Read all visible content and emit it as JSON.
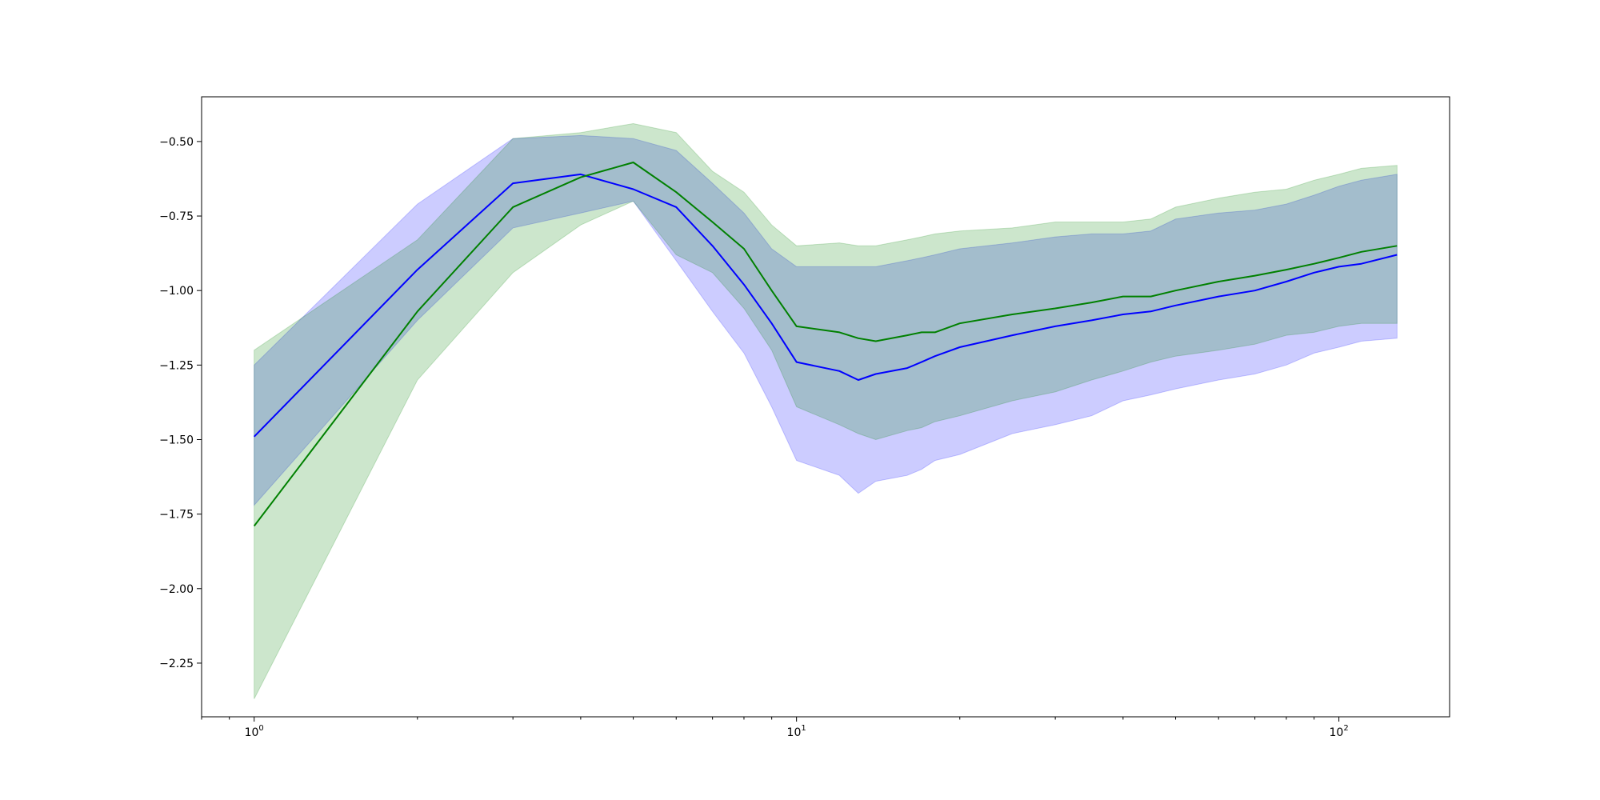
{
  "chart_data": {
    "type": "line",
    "title": "",
    "xlabel": "",
    "ylabel": "",
    "x_scale": "log",
    "xlim": [
      0.8,
      160
    ],
    "ylim": [
      -2.43,
      -0.35
    ],
    "grid": false,
    "legend": "none",
    "x_ticks": [
      {
        "value": 1,
        "base": "10",
        "exp": "0"
      },
      {
        "value": 10,
        "base": "10",
        "exp": "1"
      },
      {
        "value": 100,
        "base": "10",
        "exp": "2"
      }
    ],
    "y_ticks": [
      {
        "value": -0.5,
        "label": "−0.50"
      },
      {
        "value": -0.75,
        "label": "−0.75"
      },
      {
        "value": -1.0,
        "label": "−1.00"
      },
      {
        "value": -1.25,
        "label": "−1.25"
      },
      {
        "value": -1.5,
        "label": "−1.50"
      },
      {
        "value": -1.75,
        "label": "−1.75"
      },
      {
        "value": -2.0,
        "label": "−2.00"
      },
      {
        "value": -2.25,
        "label": "−2.25"
      }
    ],
    "x": [
      1,
      2,
      3,
      4,
      5,
      6,
      7,
      8,
      9,
      10,
      12,
      13,
      14,
      16,
      17,
      18,
      20,
      25,
      30,
      35,
      40,
      45,
      50,
      60,
      70,
      80,
      90,
      100,
      110,
      128
    ],
    "series": [
      {
        "color": "#0000ff",
        "band_color": "#0000ff",
        "values": [
          -1.49,
          -0.93,
          -0.64,
          -0.61,
          -0.66,
          -0.72,
          -0.85,
          -0.98,
          -1.11,
          -1.24,
          -1.27,
          -1.3,
          -1.28,
          -1.26,
          -1.24,
          -1.22,
          -1.19,
          -1.15,
          -1.12,
          -1.1,
          -1.08,
          -1.07,
          -1.05,
          -1.02,
          -1.0,
          -0.97,
          -0.94,
          -0.92,
          -0.91,
          -0.88
        ],
        "lower": [
          -1.72,
          -1.1,
          -0.79,
          -0.74,
          -0.7,
          -0.9,
          -1.07,
          -1.21,
          -1.39,
          -1.57,
          -1.62,
          -1.68,
          -1.64,
          -1.62,
          -1.6,
          -1.57,
          -1.55,
          -1.48,
          -1.45,
          -1.42,
          -1.37,
          -1.35,
          -1.33,
          -1.3,
          -1.28,
          -1.25,
          -1.21,
          -1.19,
          -1.17,
          -1.16
        ],
        "upper": [
          -1.25,
          -0.71,
          -0.49,
          -0.48,
          -0.49,
          -0.53,
          -0.64,
          -0.74,
          -0.86,
          -0.92,
          -0.92,
          -0.92,
          -0.92,
          -0.9,
          -0.89,
          -0.88,
          -0.86,
          -0.84,
          -0.82,
          -0.81,
          -0.81,
          -0.8,
          -0.76,
          -0.74,
          -0.73,
          -0.71,
          -0.68,
          -0.65,
          -0.63,
          -0.61
        ]
      },
      {
        "color": "#008000",
        "band_color": "#008000",
        "values": [
          -1.79,
          -1.07,
          -0.72,
          -0.62,
          -0.57,
          -0.67,
          -0.77,
          -0.86,
          -1.0,
          -1.12,
          -1.14,
          -1.16,
          -1.17,
          -1.15,
          -1.14,
          -1.14,
          -1.11,
          -1.08,
          -1.06,
          -1.04,
          -1.02,
          -1.02,
          -1.0,
          -0.97,
          -0.95,
          -0.93,
          -0.91,
          -0.89,
          -0.87,
          -0.85
        ],
        "lower": [
          -2.37,
          -1.3,
          -0.94,
          -0.78,
          -0.7,
          -0.88,
          -0.94,
          -1.06,
          -1.2,
          -1.39,
          -1.45,
          -1.48,
          -1.5,
          -1.47,
          -1.46,
          -1.44,
          -1.42,
          -1.37,
          -1.34,
          -1.3,
          -1.27,
          -1.24,
          -1.22,
          -1.2,
          -1.18,
          -1.15,
          -1.14,
          -1.12,
          -1.11,
          -1.11
        ],
        "upper": [
          -1.2,
          -0.83,
          -0.49,
          -0.47,
          -0.44,
          -0.47,
          -0.6,
          -0.67,
          -0.78,
          -0.85,
          -0.84,
          -0.85,
          -0.85,
          -0.83,
          -0.82,
          -0.81,
          -0.8,
          -0.79,
          -0.77,
          -0.77,
          -0.77,
          -0.76,
          -0.72,
          -0.69,
          -0.67,
          -0.66,
          -0.63,
          -0.61,
          -0.59,
          -0.58
        ]
      }
    ]
  }
}
